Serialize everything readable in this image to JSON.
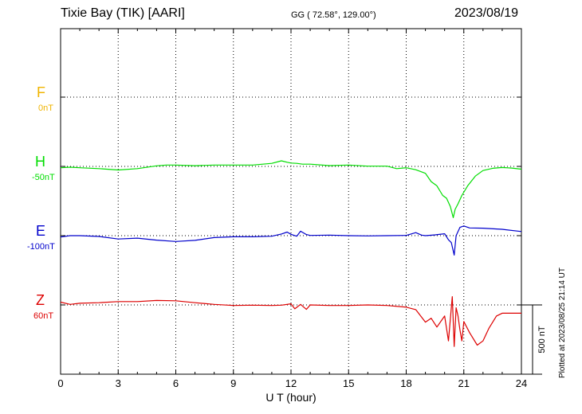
{
  "header": {
    "station": "Tixie Bay (TIK)  [AARI]",
    "coordinates": "GG ( 72.58°, 129.00°)",
    "date": "2023/08/19",
    "plotted": "Plotted at 2023/08/25 21:14 UT"
  },
  "colors": {
    "F": "#f0b400",
    "H": "#00dd00",
    "E": "#0000cc",
    "Z": "#dd0000",
    "axis": "#000000"
  },
  "chart_data": {
    "type": "line",
    "xlabel": "U T (hour)",
    "xlim": [
      0,
      24
    ],
    "xticks": [
      "0",
      "3",
      "6",
      "9",
      "12",
      "15",
      "18",
      "21",
      "24"
    ],
    "scale_bar": "500 nT",
    "channels": [
      {
        "name": "F",
        "offset_label": "0nT",
        "color": "#f0b400",
        "baseline_nT": 0,
        "x": [],
        "y": []
      },
      {
        "name": "H",
        "offset_label": "-50nT",
        "color": "#00dd00",
        "baseline_nT": -50,
        "x": [
          0,
          0.5,
          1,
          2,
          3,
          4,
          5,
          5.5,
          6,
          7,
          8,
          9,
          10,
          11,
          11.5,
          11.8,
          12,
          12.3,
          12.6,
          13,
          14,
          15,
          16,
          17,
          17.5,
          18,
          18.5,
          19,
          19.3,
          19.6,
          19.9,
          20.1,
          20.3,
          20.45,
          20.55,
          20.7,
          20.9,
          21.2,
          21.6,
          22,
          22.5,
          23,
          23.5,
          24
        ],
        "y": [
          -60,
          -56,
          -60,
          -66,
          -76,
          -66,
          -46,
          -40,
          -40,
          -45,
          -40,
          -40,
          -40,
          -28,
          -10,
          -20,
          -26,
          -28,
          -34,
          -34,
          -44,
          -40,
          -48,
          -48,
          -66,
          -60,
          -74,
          -100,
          -160,
          -190,
          -260,
          -280,
          -340,
          -420,
          -360,
          -320,
          -260,
          -190,
          -120,
          -80,
          -64,
          -58,
          -62,
          -70
        ]
      },
      {
        "name": "E",
        "offset_label": "-100nT",
        "color": "#0000cc",
        "baseline_nT": -100,
        "x": [
          0,
          0.5,
          1,
          2,
          3,
          4,
          5,
          6,
          7,
          8,
          9,
          10,
          11,
          11.5,
          11.8,
          12,
          12.3,
          12.5,
          12.8,
          13,
          14,
          15,
          16,
          17,
          18,
          18.5,
          18.8,
          19,
          19.5,
          20,
          20.2,
          20.35,
          20.5,
          20.6,
          20.8,
          21,
          21.3,
          22,
          23,
          24
        ],
        "y": [
          -110,
          -100,
          -100,
          -106,
          -124,
          -118,
          -132,
          -142,
          -134,
          -114,
          -108,
          -108,
          -104,
          -88,
          -74,
          -90,
          -104,
          -68,
          -92,
          -98,
          -96,
          -100,
          -102,
          -100,
          -98,
          -78,
          -96,
          -100,
          -94,
          -86,
          -130,
          -150,
          -240,
          -100,
          -40,
          -30,
          -44,
          -46,
          -54,
          -70
        ]
      },
      {
        "name": "Z",
        "offset_label": "60nT",
        "color": "#dd0000",
        "baseline_nT": 60,
        "x": [
          0,
          0.5,
          1,
          2,
          3,
          4,
          5,
          6,
          7,
          8,
          9,
          10,
          11,
          11.5,
          12,
          12.2,
          12.5,
          12.8,
          13,
          14,
          15,
          16,
          17,
          18,
          18.5,
          19,
          19.3,
          19.6,
          20,
          20.2,
          20.4,
          20.5,
          20.6,
          20.7,
          20.8,
          20.9,
          21,
          21.3,
          21.7,
          22,
          22.3,
          22.7,
          23,
          24
        ],
        "y": [
          80,
          64,
          72,
          76,
          84,
          84,
          92,
          90,
          76,
          64,
          56,
          58,
          56,
          58,
          68,
          32,
          64,
          28,
          60,
          56,
          56,
          60,
          56,
          44,
          26,
          -64,
          -36,
          -100,
          -20,
          -200,
          120,
          -240,
          40,
          -20,
          -120,
          -200,
          -60,
          -140,
          -230,
          -200,
          -110,
          -20,
          0,
          0
        ]
      }
    ]
  }
}
